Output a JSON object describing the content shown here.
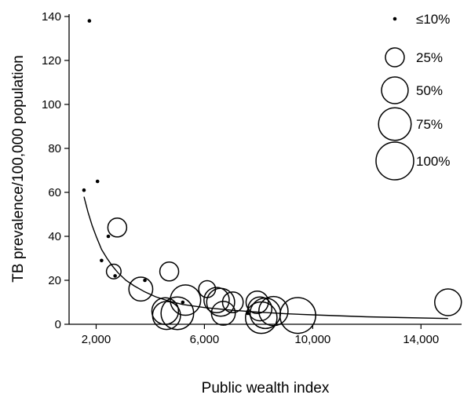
{
  "chart_data": {
    "type": "scatter",
    "title": "",
    "xlabel": "Public wealth index",
    "ylabel": "TB prevalence/100,000 population",
    "xlim": [
      1000,
      15500
    ],
    "ylim": [
      0,
      140
    ],
    "x_ticks": [
      2000,
      6000,
      10000,
      14000
    ],
    "x_tick_labels": [
      "2,000",
      "6,000",
      "10,000",
      "14,000"
    ],
    "y_ticks": [
      0,
      20,
      40,
      60,
      80,
      100,
      120,
      140
    ],
    "y_tick_labels": [
      "0",
      "20",
      "40",
      "60",
      "80",
      "100",
      "120",
      "140"
    ],
    "size_legend": [
      {
        "label": "≤10%",
        "value": 10
      },
      {
        "label": "25%",
        "value": 25
      },
      {
        "label": "50%",
        "value": 50
      },
      {
        "label": "75%",
        "value": 75
      },
      {
        "label": "100%",
        "value": 100
      }
    ],
    "points": [
      {
        "x": 1550,
        "y": 61,
        "size": 5
      },
      {
        "x": 1750,
        "y": 138,
        "size": 5
      },
      {
        "x": 2050,
        "y": 65,
        "size": 5
      },
      {
        "x": 2200,
        "y": 29,
        "size": 5
      },
      {
        "x": 2450,
        "y": 40,
        "size": 5
      },
      {
        "x": 2650,
        "y": 24,
        "size": 15
      },
      {
        "x": 2700,
        "y": 22,
        "size": 5
      },
      {
        "x": 2780,
        "y": 44,
        "size": 25
      },
      {
        "x": 3650,
        "y": 16,
        "size": 40
      },
      {
        "x": 3800,
        "y": 20,
        "size": 5
      },
      {
        "x": 4550,
        "y": 6,
        "size": 50
      },
      {
        "x": 4600,
        "y": 4,
        "size": 55
      },
      {
        "x": 4700,
        "y": 24,
        "size": 25
      },
      {
        "x": 5000,
        "y": 5,
        "size": 75
      },
      {
        "x": 5200,
        "y": 10,
        "size": 10
      },
      {
        "x": 5300,
        "y": 11,
        "size": 65
      },
      {
        "x": 6100,
        "y": 16,
        "size": 20
      },
      {
        "x": 6450,
        "y": 11,
        "size": 45
      },
      {
        "x": 6600,
        "y": 10,
        "size": 55
      },
      {
        "x": 6700,
        "y": 5,
        "size": 40
      },
      {
        "x": 7050,
        "y": 10,
        "size": 30
      },
      {
        "x": 7600,
        "y": 5,
        "size": 10
      },
      {
        "x": 7950,
        "y": 10,
        "size": 35
      },
      {
        "x": 8050,
        "y": 7,
        "size": 40
      },
      {
        "x": 8100,
        "y": 3,
        "size": 70
      },
      {
        "x": 8250,
        "y": 5,
        "size": 65
      },
      {
        "x": 8550,
        "y": 6,
        "size": 60
      },
      {
        "x": 9450,
        "y": 4,
        "size": 90
      },
      {
        "x": 15000,
        "y": 10,
        "size": 50
      }
    ],
    "trend_line": {
      "x": [
        1550,
        1700,
        1850,
        2000,
        2200,
        2400,
        2600,
        2800,
        3100,
        3400,
        3800,
        4200,
        4700,
        5200,
        6000,
        7000,
        8000,
        9000,
        10000,
        12000,
        15000
      ],
      "y": [
        58,
        51,
        45,
        40,
        34,
        30,
        26.5,
        23.5,
        20,
        17.5,
        14.7,
        12.5,
        10.5,
        9,
        7.6,
        6.4,
        5.5,
        4.8,
        4.3,
        3.4,
        2.6
      ]
    }
  }
}
